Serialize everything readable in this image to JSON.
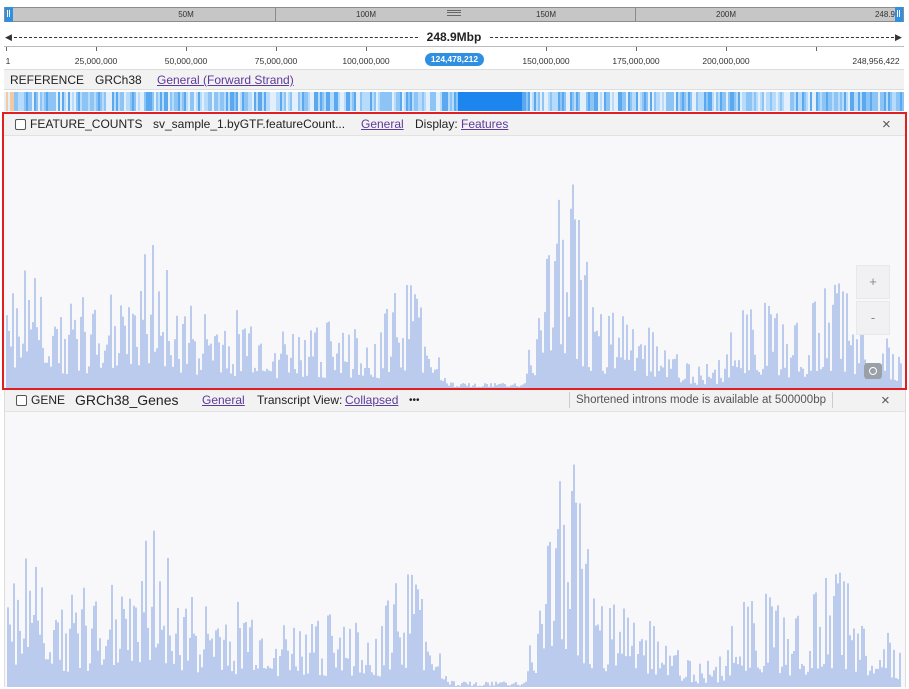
{
  "overview": {
    "ticks": [
      "50M",
      "100M",
      "150M",
      "200M",
      "248.9"
    ]
  },
  "span": {
    "label": "248.9Mbp"
  },
  "ruler": {
    "labels": [
      "1",
      "25,000,000",
      "50,000,000",
      "75,000,000",
      "100,000,000",
      "150,000,000",
      "175,000,000",
      "200,000,000",
      "248,956,422"
    ],
    "position_badge": "124,478,212"
  },
  "reference_track": {
    "type_label": "REFERENCE",
    "name": "GRCh38",
    "mode_link": "General (Forward Strand)"
  },
  "feature_counts_track": {
    "type_label": "FEATURE_COUNTS",
    "file_name": "sv_sample_1.byGTF.featureCount...",
    "general_link": "General",
    "display_label": "Display:",
    "display_link": "Features",
    "close_icon": "close-icon",
    "zoom_in": "+",
    "zoom_out": "-",
    "camera_icon": "camera-icon",
    "accent_color": "#e02020",
    "bar_color": "#7b9ee0"
  },
  "gene_track": {
    "type_label": "GENE",
    "name": "GRCh38_Genes",
    "general_link": "General",
    "transcript_label": "Transcript View:",
    "transcript_link": "Collapsed",
    "more": "•••",
    "introns_note": "Shortened introns mode is available at 500000bp",
    "close_icon": "close-icon"
  }
}
